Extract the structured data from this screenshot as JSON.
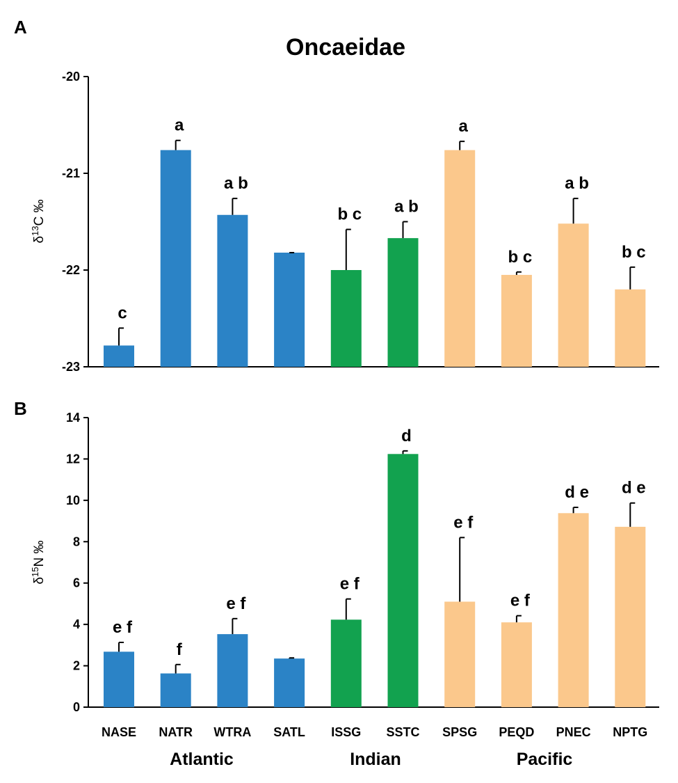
{
  "figure": {
    "title": "Oncaeidae",
    "regions": [
      "Atlantic",
      "Indian",
      "Pacific"
    ]
  },
  "colors": {
    "Atlantic": "#2b83c6",
    "Indian": "#12a24f",
    "Pacific": "#fbc88c",
    "axis": "#000000"
  },
  "chart_data": [
    {
      "type": "bar",
      "panel": "A",
      "title": "Oncaeidae",
      "xlabel": "",
      "ylabel_prefix": "δ",
      "ylabel_sup": "13",
      "ylabel_suffix": "C ‰",
      "ylim": [
        -23,
        -20
      ],
      "baseline": -23,
      "yticks": [
        -23,
        -22,
        -21,
        -20
      ],
      "ytick_labels": [
        "-23",
        "-22",
        "-21",
        "-20"
      ],
      "categories": [
        "NASE",
        "NATR",
        "WTRA",
        "SATL",
        "ISSG",
        "SSTC",
        "SPSG",
        "PEQD",
        "PNEC",
        "NPTG"
      ],
      "regions": [
        "Atlantic",
        "Atlantic",
        "Atlantic",
        "Atlantic",
        "Indian",
        "Indian",
        "Pacific",
        "Pacific",
        "Pacific",
        "Pacific"
      ],
      "values": [
        -22.78,
        -20.76,
        -21.43,
        -21.82,
        -22.0,
        -21.67,
        -20.76,
        -22.05,
        -21.52,
        -22.2
      ],
      "errors": [
        0.18,
        0.1,
        0.17,
        0.0,
        0.42,
        0.17,
        0.09,
        0.03,
        0.26,
        0.23
      ],
      "significance": [
        "c",
        "a",
        "a b",
        "",
        "b c",
        "a b",
        "a",
        "b c",
        "a b",
        "b c"
      ]
    },
    {
      "type": "bar",
      "panel": "B",
      "xlabel": "",
      "ylabel_prefix": "δ",
      "ylabel_sup": "15",
      "ylabel_suffix": "N ‰",
      "ylim": [
        0,
        14
      ],
      "baseline": 0,
      "yticks": [
        0,
        2,
        4,
        6,
        8,
        10,
        12,
        14
      ],
      "ytick_labels": [
        "0",
        "2",
        "4",
        "6",
        "8",
        "10",
        "12",
        "14"
      ],
      "categories": [
        "NASE",
        "NATR",
        "WTRA",
        "SATL",
        "ISSG",
        "SSTC",
        "SPSG",
        "PEQD",
        "PNEC",
        "NPTG"
      ],
      "regions": [
        "Atlantic",
        "Atlantic",
        "Atlantic",
        "Atlantic",
        "Indian",
        "Indian",
        "Pacific",
        "Pacific",
        "Pacific",
        "Pacific"
      ],
      "values": [
        2.68,
        1.63,
        3.53,
        2.35,
        4.23,
        12.24,
        5.1,
        4.1,
        9.38,
        8.72
      ],
      "errors": [
        0.45,
        0.43,
        0.75,
        0.03,
        1.0,
        0.15,
        3.1,
        0.32,
        0.28,
        1.15
      ],
      "significance": [
        "e f",
        "f",
        "e f",
        "",
        "e f",
        "d",
        "e f",
        "e f",
        "d e",
        "d e"
      ]
    }
  ]
}
